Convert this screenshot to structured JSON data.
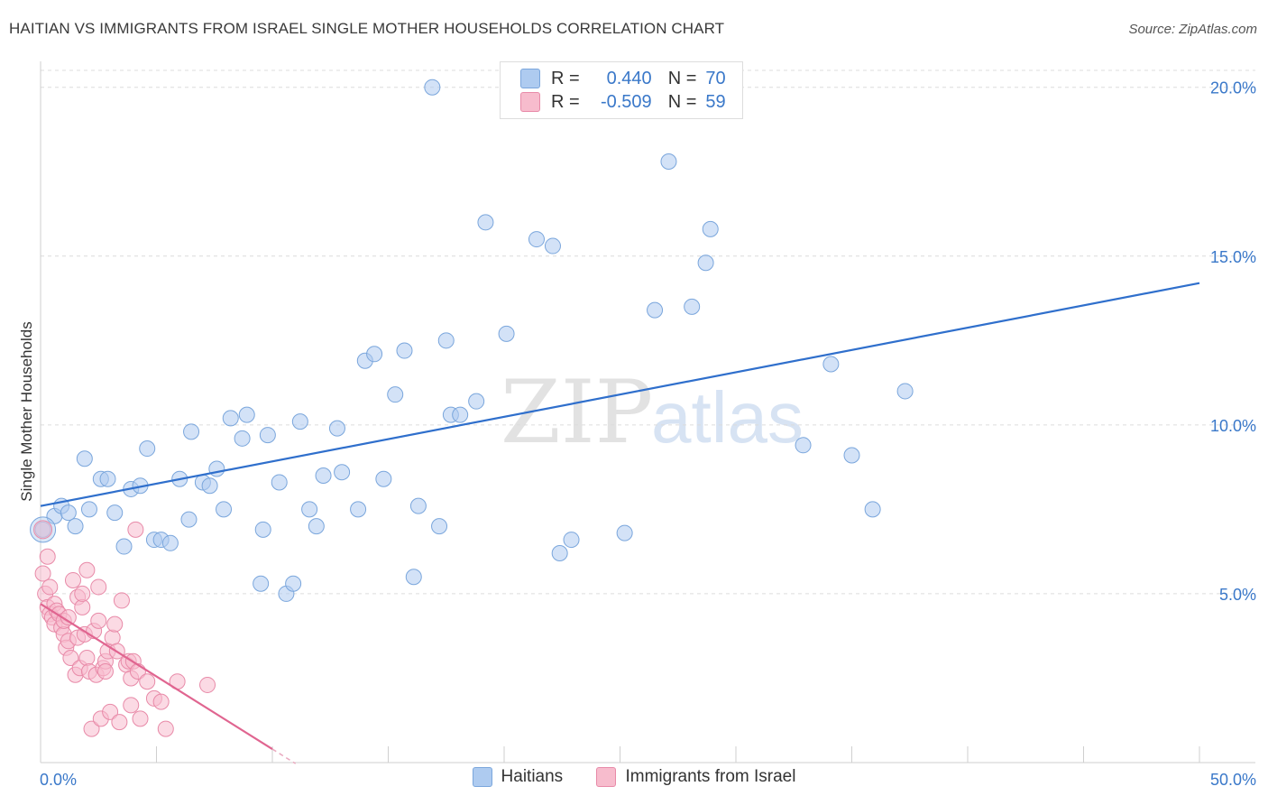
{
  "header": {
    "title": "HAITIAN VS IMMIGRANTS FROM ISRAEL SINGLE MOTHER HOUSEHOLDS CORRELATION CHART",
    "source": "Source: ZipAtlas.com"
  },
  "watermark": {
    "part1": "ZIP",
    "part2": "atlas"
  },
  "stats": [
    {
      "r_label": "R =",
      "r_value": "0.440",
      "n_label": "N =",
      "n_value": "70",
      "color": "#aecbf0",
      "border": "#7aa6dc"
    },
    {
      "r_label": "R =",
      "r_value": "-0.509",
      "n_label": "N =",
      "n_value": "59",
      "color": "#f7bccd",
      "border": "#e88aa8"
    }
  ],
  "legend": [
    {
      "label": "Haitians",
      "color": "#aecbf0",
      "border": "#7aa6dc"
    },
    {
      "label": "Immigrants from Israel",
      "color": "#f7bccd",
      "border": "#e88aa8"
    }
  ],
  "chart_data": {
    "type": "scatter",
    "title": "HAITIAN VS IMMIGRANTS FROM ISRAEL SINGLE MOTHER HOUSEHOLDS CORRELATION CHART",
    "xlabel": "",
    "ylabel": "Single Mother Households",
    "xlim": [
      0,
      50
    ],
    "ylim": [
      0,
      20.5
    ],
    "x_tick_labels": [
      "0.0%",
      "50.0%"
    ],
    "y_ticks": [
      5,
      10,
      15,
      20
    ],
    "y_tick_labels": [
      "5.0%",
      "10.0%",
      "15.0%",
      "20.0%"
    ],
    "grid": true,
    "legend_position": "bottom",
    "series": [
      {
        "name": "Haitians",
        "color": "#aecbf0",
        "stroke": "#7aa6dc",
        "line_color": "#2f6fcc",
        "trend": {
          "x": [
            0,
            50
          ],
          "y": [
            7.6,
            14.2
          ]
        },
        "points": [
          [
            0.1,
            6.9
          ],
          [
            0.6,
            7.3
          ],
          [
            0.9,
            7.6
          ],
          [
            1.2,
            7.4
          ],
          [
            1.5,
            7.0
          ],
          [
            1.9,
            9.0
          ],
          [
            2.1,
            7.5
          ],
          [
            2.6,
            8.4
          ],
          [
            2.9,
            8.4
          ],
          [
            3.2,
            7.4
          ],
          [
            3.6,
            6.4
          ],
          [
            3.9,
            8.1
          ],
          [
            4.3,
            8.2
          ],
          [
            4.6,
            9.3
          ],
          [
            4.9,
            6.6
          ],
          [
            5.2,
            6.6
          ],
          [
            5.6,
            6.5
          ],
          [
            6.0,
            8.4
          ],
          [
            6.4,
            7.2
          ],
          [
            6.5,
            9.8
          ],
          [
            7.0,
            8.3
          ],
          [
            7.3,
            8.2
          ],
          [
            7.6,
            8.7
          ],
          [
            7.9,
            7.5
          ],
          [
            8.2,
            10.2
          ],
          [
            8.7,
            9.6
          ],
          [
            8.9,
            10.3
          ],
          [
            9.5,
            5.3
          ],
          [
            9.6,
            6.9
          ],
          [
            9.8,
            9.7
          ],
          [
            10.3,
            8.3
          ],
          [
            10.6,
            5.0
          ],
          [
            10.9,
            5.3
          ],
          [
            11.2,
            10.1
          ],
          [
            11.6,
            7.5
          ],
          [
            11.9,
            7.0
          ],
          [
            12.2,
            8.5
          ],
          [
            12.8,
            9.9
          ],
          [
            13.0,
            8.6
          ],
          [
            13.7,
            7.5
          ],
          [
            14.0,
            11.9
          ],
          [
            14.4,
            12.1
          ],
          [
            14.8,
            8.4
          ],
          [
            15.3,
            10.9
          ],
          [
            15.7,
            12.2
          ],
          [
            16.1,
            5.5
          ],
          [
            16.3,
            7.6
          ],
          [
            16.9,
            20.0
          ],
          [
            17.2,
            7.0
          ],
          [
            17.5,
            12.5
          ],
          [
            17.7,
            10.3
          ],
          [
            18.1,
            10.3
          ],
          [
            18.8,
            10.7
          ],
          [
            19.2,
            16.0
          ],
          [
            20.1,
            12.7
          ],
          [
            21.4,
            15.5
          ],
          [
            22.1,
            15.3
          ],
          [
            22.4,
            6.2
          ],
          [
            22.9,
            6.6
          ],
          [
            25.2,
            6.8
          ],
          [
            26.5,
            13.4
          ],
          [
            27.1,
            17.8
          ],
          [
            28.1,
            13.5
          ],
          [
            28.7,
            14.8
          ],
          [
            28.9,
            15.8
          ],
          [
            32.9,
            9.4
          ],
          [
            34.1,
            11.8
          ],
          [
            35.0,
            9.1
          ],
          [
            35.9,
            7.5
          ],
          [
            37.3,
            11.0
          ]
        ]
      },
      {
        "name": "Immigrants from Israel",
        "color": "#f7bccd",
        "stroke": "#e88aa8",
        "line_color": "#e06590",
        "trend": {
          "x": [
            0,
            10
          ],
          "y": [
            4.7,
            0.4
          ]
        },
        "points": [
          [
            0.1,
            5.6
          ],
          [
            0.2,
            5.0
          ],
          [
            0.3,
            6.1
          ],
          [
            0.3,
            4.6
          ],
          [
            0.4,
            4.4
          ],
          [
            0.4,
            5.2
          ],
          [
            0.5,
            4.3
          ],
          [
            0.6,
            4.1
          ],
          [
            0.6,
            4.7
          ],
          [
            0.7,
            4.5
          ],
          [
            0.8,
            4.4
          ],
          [
            0.9,
            4.0
          ],
          [
            1.0,
            3.8
          ],
          [
            1.0,
            4.2
          ],
          [
            1.1,
            3.4
          ],
          [
            1.2,
            3.6
          ],
          [
            1.2,
            4.3
          ],
          [
            1.3,
            3.1
          ],
          [
            1.4,
            5.4
          ],
          [
            1.5,
            2.6
          ],
          [
            1.6,
            3.7
          ],
          [
            1.6,
            4.9
          ],
          [
            1.7,
            2.8
          ],
          [
            1.8,
            4.6
          ],
          [
            1.8,
            5.0
          ],
          [
            1.9,
            3.8
          ],
          [
            2.0,
            5.7
          ],
          [
            2.0,
            3.1
          ],
          [
            2.1,
            2.7
          ],
          [
            2.2,
            1.0
          ],
          [
            2.3,
            3.9
          ],
          [
            2.4,
            2.6
          ],
          [
            2.5,
            4.2
          ],
          [
            2.5,
            5.2
          ],
          [
            2.6,
            1.3
          ],
          [
            2.7,
            2.8
          ],
          [
            2.8,
            3.0
          ],
          [
            2.8,
            2.7
          ],
          [
            2.9,
            3.3
          ],
          [
            3.0,
            1.5
          ],
          [
            3.1,
            3.7
          ],
          [
            3.2,
            4.1
          ],
          [
            3.3,
            3.3
          ],
          [
            3.4,
            1.2
          ],
          [
            3.5,
            4.8
          ],
          [
            3.7,
            2.9
          ],
          [
            3.8,
            3.0
          ],
          [
            3.9,
            1.7
          ],
          [
            3.9,
            2.5
          ],
          [
            4.0,
            3.0
          ],
          [
            4.1,
            6.9
          ],
          [
            4.2,
            2.7
          ],
          [
            4.3,
            1.3
          ],
          [
            4.6,
            2.4
          ],
          [
            4.9,
            1.9
          ],
          [
            5.2,
            1.8
          ],
          [
            5.4,
            1.0
          ],
          [
            5.9,
            2.4
          ],
          [
            7.2,
            2.3
          ]
        ]
      }
    ]
  }
}
